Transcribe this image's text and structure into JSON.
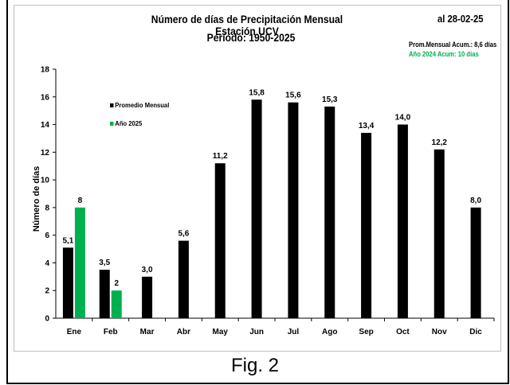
{
  "chart_data": {
    "type": "bar",
    "title": "Número de días de Precipitación Mensual Estación UCV",
    "subtitle": "Período: 1950-2025",
    "date_note": "al 28-02-25",
    "avg_note": "Prom.Mensual  Acum.: 8,6 días",
    "acc_note": "Año 2024 Acum: 10 días",
    "ylabel": "Número de días",
    "ylim": [
      0,
      18
    ],
    "yticks": [
      0,
      2,
      4,
      6,
      8,
      10,
      12,
      14,
      16,
      18
    ],
    "categories": [
      "Ene",
      "Feb",
      "Mar",
      "Abr",
      "May",
      "Jun",
      "Jul",
      "Ago",
      "Sep",
      "Oct",
      "Nov",
      "Dic"
    ],
    "series": [
      {
        "name": "Promedio Mensual",
        "color": "#000000",
        "values": [
          5.1,
          3.5,
          3.0,
          5.6,
          11.2,
          15.8,
          15.6,
          15.3,
          13.4,
          14.0,
          12.2,
          8.0
        ],
        "labels": [
          "5,1",
          "3,5",
          "3,0",
          "5,6",
          "11,2",
          "15,8",
          "15,6",
          "15,3",
          "13,4",
          "14,0",
          "12,2",
          "8,0"
        ]
      },
      {
        "name": "Año 2025",
        "color": "#00b050",
        "values": [
          8,
          2,
          null,
          null,
          null,
          null,
          null,
          null,
          null,
          null,
          null,
          null
        ],
        "labels": [
          "8",
          "2",
          "",
          "",
          "",
          "",
          "",
          "",
          "",
          "",
          "",
          ""
        ]
      }
    ],
    "legend_position": "top-left",
    "grid": false
  },
  "caption": "Fig. 2"
}
